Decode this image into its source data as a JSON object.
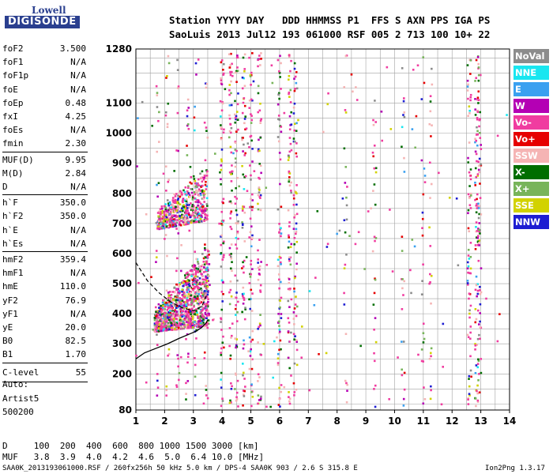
{
  "logo": {
    "line1": "Lowell",
    "line2": "DIGISONDE"
  },
  "header": {
    "line1": "Station YYYY DAY   DDD HHMMSS P1  FFS S AXN PPS IGA PS",
    "line2": "SaoLuis 2013 Jul12 193 061000 RSF 005 2 713 100 10+ 22"
  },
  "params": {
    "group1": [
      {
        "k": "foF2",
        "v": "3.500"
      },
      {
        "k": "foF1",
        "v": "N/A"
      },
      {
        "k": "foF1p",
        "v": "N/A"
      },
      {
        "k": "foE",
        "v": "N/A"
      },
      {
        "k": "foEp",
        "v": "0.48"
      },
      {
        "k": "fxI",
        "v": "4.25"
      },
      {
        "k": "foEs",
        "v": "N/A"
      },
      {
        "k": "fmin",
        "v": "2.30"
      }
    ],
    "group2": [
      {
        "k": "MUF(D)",
        "v": "9.95"
      },
      {
        "k": "M(D)",
        "v": "2.84"
      },
      {
        "k": "D",
        "v": "N/A"
      }
    ],
    "group3": [
      {
        "k": "h`F",
        "v": "350.0"
      },
      {
        "k": "h`F2",
        "v": "350.0"
      },
      {
        "k": "h`E",
        "v": "N/A"
      },
      {
        "k": "h`Es",
        "v": "N/A"
      }
    ],
    "group4": [
      {
        "k": "hmF2",
        "v": "359.4"
      },
      {
        "k": "hmF1",
        "v": "N/A"
      },
      {
        "k": "hmE",
        "v": "110.0"
      },
      {
        "k": "yF2",
        "v": "76.9"
      },
      {
        "k": "yF1",
        "v": "N/A"
      },
      {
        "k": "yE",
        "v": "20.0"
      },
      {
        "k": "B0",
        "v": "82.5"
      },
      {
        "k": "B1",
        "v": "1.70"
      }
    ],
    "clevel": {
      "k": "C-level",
      "v": "55"
    }
  },
  "auto": {
    "line1": "Auto:",
    "line2": "Artist5",
    "line3": "500200"
  },
  "legend": [
    {
      "label": "NoVal",
      "color": "#8c8c8c"
    },
    {
      "label": "NNE",
      "color": "#19e6f0"
    },
    {
      "label": "E",
      "color": "#3aa0f0"
    },
    {
      "label": "W",
      "color": "#b400b4"
    },
    {
      "label": "Vo-",
      "color": "#f03ca0"
    },
    {
      "label": "Vo+",
      "color": "#e60000"
    },
    {
      "label": "SSW",
      "color": "#f5b4b4"
    },
    {
      "label": "X-",
      "color": "#006e00"
    },
    {
      "label": "X+",
      "color": "#78b45a"
    },
    {
      "label": "SSE",
      "color": "#d2d200"
    },
    {
      "label": "NNW",
      "color": "#1e1ed2"
    }
  ],
  "bottom": {
    "line1": "D     100  200  400  600  800 1000 1500 3000 [km]",
    "line2": "MUF   3.8  3.9  4.0  4.2  4.6  5.0  6.4 10.0 [MHz]"
  },
  "footer": {
    "left": "SAA0K_2013193061000.RSF / 260fx256h 50 kHz 5.0 km / DPS-4 SAA0K 903 / 2.6 S 315.8 E",
    "right": "Ion2Png 1.3.17"
  },
  "chart_data": {
    "type": "scatter",
    "title": "",
    "xlabel": "",
    "ylabel": "",
    "xlim": [
      1,
      14
    ],
    "ylim": [
      80,
      1280
    ],
    "x_ticks": [
      1,
      2,
      3,
      4,
      5,
      6,
      7,
      8,
      9,
      10,
      11,
      12,
      13,
      14
    ],
    "y_ticks": [
      80,
      200,
      300,
      400,
      500,
      600,
      700,
      800,
      900,
      1000,
      1100,
      1280
    ],
    "grid": true,
    "legend_placement": "right",
    "profile_curve": {
      "x": [
        1.0,
        1.3,
        1.7,
        2.1,
        2.5,
        2.8,
        3.1,
        3.3,
        3.45,
        3.5
      ],
      "y": [
        250,
        270,
        285,
        300,
        318,
        330,
        342,
        355,
        370,
        380
      ]
    },
    "virtual_height_trace": {
      "x": [
        1.0,
        1.4,
        1.8,
        2.2,
        2.6,
        3.0,
        3.3,
        3.45
      ],
      "y": [
        570,
        510,
        470,
        440,
        420,
        410,
        425,
        460
      ]
    },
    "echo_regions": [
      {
        "name": "o-trace F2",
        "x_range": [
          1.65,
          3.55
        ],
        "y_range": [
          340,
          600
        ]
      },
      {
        "name": "second hop",
        "x_range": [
          1.75,
          3.45
        ],
        "y_range": [
          670,
          880
        ]
      },
      {
        "name": "interference line",
        "x": 4.0,
        "y_range": [
          100,
          1270
        ]
      },
      {
        "name": "interference line",
        "x": 6.4,
        "y_range": [
          100,
          1270
        ]
      },
      {
        "name": "interference line",
        "x": 12.9,
        "y_range": [
          100,
          1270
        ]
      }
    ]
  }
}
